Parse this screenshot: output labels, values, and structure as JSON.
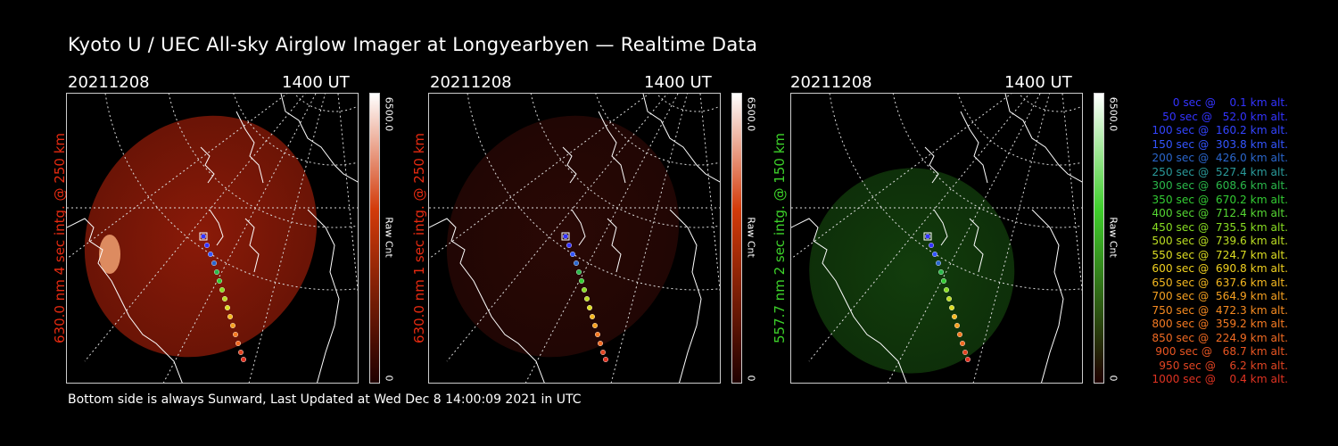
{
  "title": "Kyoto U / UEC All-sky Airglow Imager at Longyearbyen — Realtime Data",
  "footer": "Bottom side is always Sunward, Last Updated at Wed Dec  8 14:00:09 2021 in UTC",
  "colors": {
    "background": "#000000",
    "text": "#ffffff",
    "red_label": "#e62a10",
    "green_label": "#3dd12a"
  },
  "panels": [
    {
      "date": "20211208",
      "time": "1400 UT",
      "label": "630.0 nm 4 sec intg. @ 250 km",
      "label_color": "#e62a10",
      "glow_color": "#8a1a08",
      "cbar_max": "6500.0",
      "cbar_min": "0",
      "cbar_unit": "Raw Cnt",
      "cbar_color": "#d33b0a",
      "intensity": "bright"
    },
    {
      "date": "20211208",
      "time": "1400 UT",
      "label": "630.0 nm 1 sec intg. @ 250 km",
      "label_color": "#e62a10",
      "glow_color": "#2a0805",
      "cbar_max": "6500.0",
      "cbar_min": "0",
      "cbar_unit": "Raw Cnt",
      "cbar_color": "#d33b0a",
      "intensity": "dim"
    },
    {
      "date": "20211208",
      "time": "1400 UT",
      "label": "557.7 nm 2 sec intg. @ 150 km",
      "label_color": "#3dd12a",
      "glow_color": "#123d0c",
      "cbar_max": "6500.0",
      "cbar_min": "0",
      "cbar_unit": "Raw Cnt",
      "cbar_color": "#3fcf2c",
      "intensity": "medium"
    }
  ],
  "legend": [
    {
      "text": "0 sec @    0.1 km alt.",
      "color": "#3333ff"
    },
    {
      "text": "50 sec @   52.0 km alt.",
      "color": "#3333ff"
    },
    {
      "text": "100 sec @  160.2 km alt.",
      "color": "#3344ff"
    },
    {
      "text": "150 sec @  303.8 km alt.",
      "color": "#3355ff"
    },
    {
      "text": "200 sec @  426.0 km alt.",
      "color": "#2a66cc"
    },
    {
      "text": "250 sec @  527.4 km alt.",
      "color": "#2a9a9a"
    },
    {
      "text": "300 sec @  608.6 km alt.",
      "color": "#2ab84a"
    },
    {
      "text": "350 sec @  670.2 km alt.",
      "color": "#33cc33"
    },
    {
      "text": "400 sec @  712.4 km alt.",
      "color": "#55d633"
    },
    {
      "text": "450 sec @  735.5 km alt.",
      "color": "#88dd22"
    },
    {
      "text": "500 sec @  739.6 km alt.",
      "color": "#bbdd22"
    },
    {
      "text": "550 sec @  724.7 km alt.",
      "color": "#dddd22"
    },
    {
      "text": "600 sec @  690.8 km alt.",
      "color": "#f0d020"
    },
    {
      "text": "650 sec @  637.6 km alt.",
      "color": "#f5b820"
    },
    {
      "text": "700 sec @  564.9 km alt.",
      "color": "#f5a020"
    },
    {
      "text": "750 sec @  472.3 km alt.",
      "color": "#f58a20"
    },
    {
      "text": "800 sec @  359.2 km alt.",
      "color": "#f57a22"
    },
    {
      "text": "850 sec @  224.9 km alt.",
      "color": "#f06a22"
    },
    {
      "text": "900 sec @   68.7 km alt.",
      "color": "#e85522"
    },
    {
      "text": "950 sec @    6.2 km alt.",
      "color": "#e04422"
    },
    {
      "text": "1000 sec @    0.4 km alt.",
      "color": "#e03322"
    }
  ]
}
